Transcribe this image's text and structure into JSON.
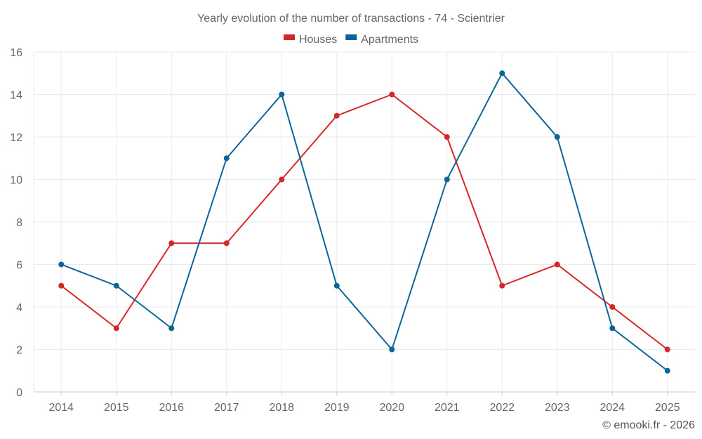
{
  "chart_data": {
    "type": "line",
    "title": "Yearly evolution of the number of transactions - 74 - Scientrier",
    "xlabel": "",
    "ylabel": "",
    "categories": [
      "2014",
      "2015",
      "2016",
      "2017",
      "2018",
      "2019",
      "2020",
      "2021",
      "2022",
      "2023",
      "2024",
      "2025"
    ],
    "ylim": [
      0,
      16
    ],
    "yticks": [
      0,
      2,
      4,
      6,
      8,
      10,
      12,
      14,
      16
    ],
    "grid": true,
    "legend_position": "top-center",
    "series": [
      {
        "name": "Houses",
        "color": "#d62728",
        "values": [
          5,
          3,
          7,
          7,
          10,
          13,
          14,
          12,
          5,
          6,
          4,
          2
        ]
      },
      {
        "name": "Apartments",
        "color": "#0b6598",
        "values": [
          6,
          5,
          3,
          11,
          14,
          5,
          2,
          10,
          15,
          12,
          3,
          1
        ]
      }
    ]
  },
  "footer": {
    "credit": "© emooki.fr - 2026"
  }
}
